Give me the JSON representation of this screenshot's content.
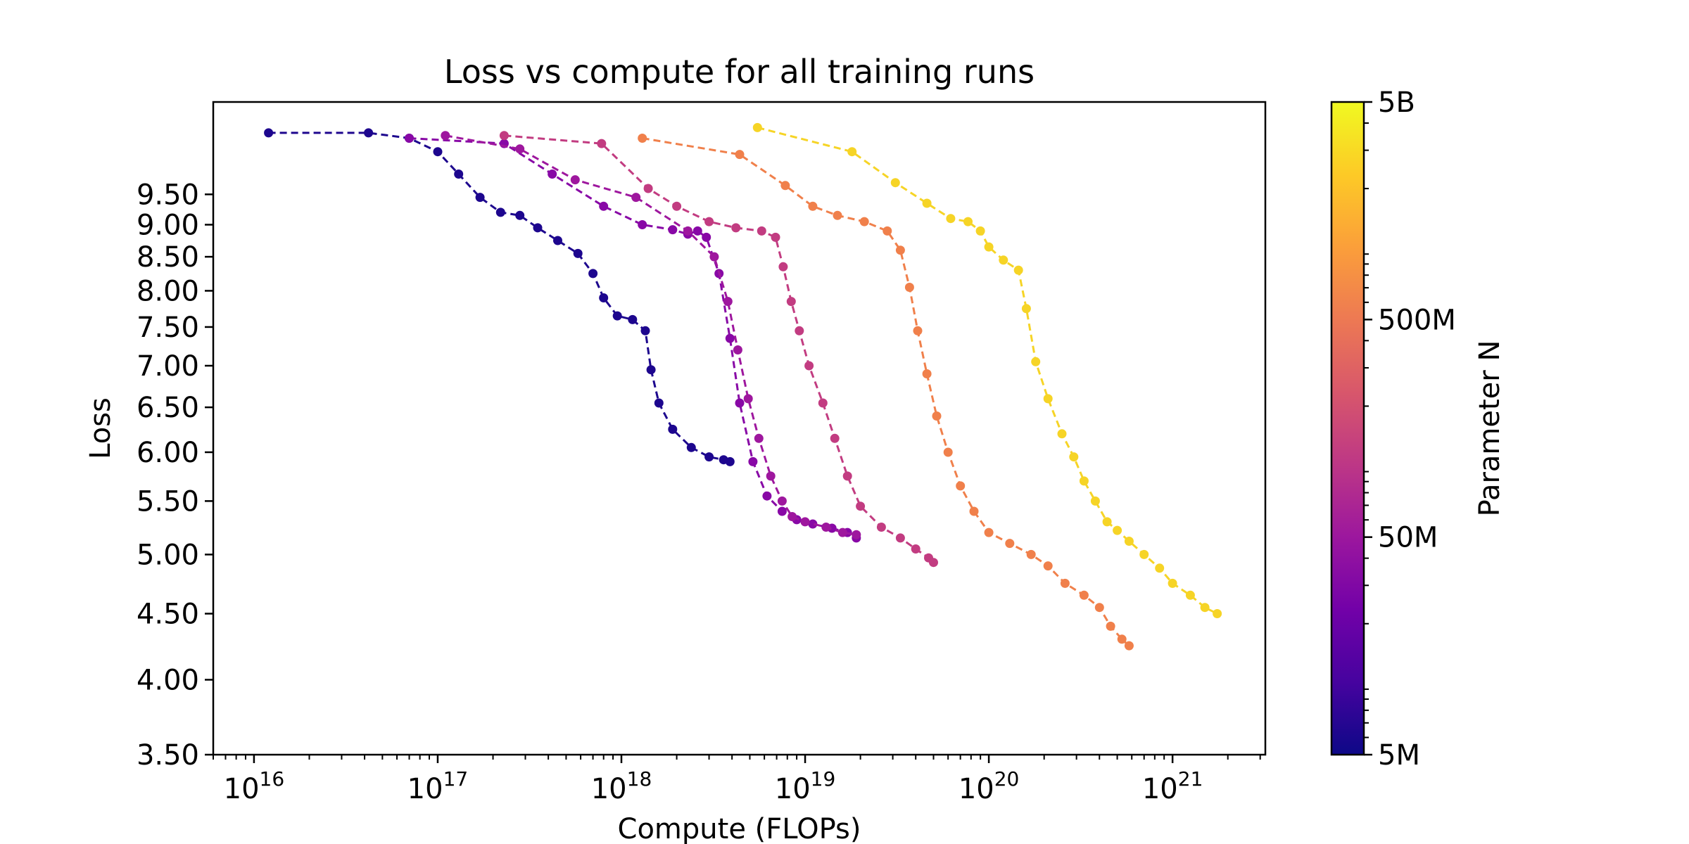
{
  "chart_data": {
    "type": "line",
    "title": "Loss vs compute for all training runs",
    "xlabel": "Compute (FLOPs)",
    "ylabel": "Loss",
    "xscale": "log",
    "yscale": "log",
    "xlim": [
      6000000000000000.0,
      3.2e+21
    ],
    "ylim": [
      3.5,
      11.2
    ],
    "grid": false,
    "line_style": "dashed",
    "marker": "circle",
    "x_ticks": [
      {
        "value": 1e+16,
        "base": "10",
        "exp": "16"
      },
      {
        "value": 1e+17,
        "base": "10",
        "exp": "17"
      },
      {
        "value": 1e+18,
        "base": "10",
        "exp": "18"
      },
      {
        "value": 1e+19,
        "base": "10",
        "exp": "19"
      },
      {
        "value": 1e+20,
        "base": "10",
        "exp": "20"
      },
      {
        "value": 1e+21,
        "base": "10",
        "exp": "21"
      }
    ],
    "y_ticks": [
      "3.50",
      "4.00",
      "4.50",
      "5.00",
      "5.50",
      "6.00",
      "6.50",
      "7.00",
      "7.50",
      "8.00",
      "8.50",
      "9.00",
      "9.50"
    ],
    "colorbar": {
      "label": "Parameter N",
      "scale": "log",
      "colormap": "plasma",
      "range": [
        5000000.0,
        5000000000.0
      ],
      "ticks": [
        {
          "value": 5000000.0,
          "label": "5M"
        },
        {
          "value": 50000000.0,
          "label": "50M"
        },
        {
          "value": 500000000.0,
          "label": "500M"
        },
        {
          "value": 5000000000.0,
          "label": "5B"
        }
      ],
      "colors": [
        "#0d0887",
        "#46039f",
        "#7201a8",
        "#9c179e",
        "#bd3786",
        "#d8576b",
        "#ed7953",
        "#fb9f3a",
        "#fdca26",
        "#f0f921"
      ]
    },
    "series": [
      {
        "color": "#1d068e",
        "x": [
          1.2e+16,
          4.2e+16,
          7e+16,
          1e+17,
          1.3e+17,
          1.7e+17,
          2.2e+17,
          2.8e+17,
          3.5e+17,
          4.5e+17,
          5.8e+17,
          7e+17,
          8e+17,
          9.5e+17,
          1.15e+18,
          1.35e+18,
          1.45e+18,
          1.6e+18,
          1.9e+18,
          2.4e+18,
          3e+18,
          3.6e+18,
          3.9e+18
        ],
        "y": [
          10.6,
          10.6,
          10.5,
          10.25,
          9.85,
          9.45,
          9.2,
          9.15,
          8.95,
          8.75,
          8.55,
          8.25,
          7.9,
          7.65,
          7.6,
          7.45,
          6.95,
          6.55,
          6.25,
          6.05,
          5.95,
          5.92,
          5.9
        ]
      },
      {
        "color": "#8808a6",
        "x": [
          7e+16,
          2.3e+17,
          4.2e+17,
          8e+17,
          1.3e+18,
          1.9e+18,
          2.3e+18,
          2.6e+18,
          2.9e+18,
          3.4e+18,
          3.9e+18,
          4.4e+18,
          5.2e+18,
          6.2e+18,
          7.5e+18,
          9e+18,
          1.1e+19,
          1.4e+19,
          1.7e+19,
          1.9e+19
        ],
        "y": [
          10.5,
          10.4,
          9.85,
          9.3,
          9.0,
          8.92,
          8.85,
          8.9,
          8.8,
          8.25,
          7.35,
          6.55,
          5.9,
          5.55,
          5.4,
          5.32,
          5.28,
          5.24,
          5.2,
          5.15
        ]
      },
      {
        "color": "#9e179e",
        "x": [
          1.1e+17,
          2.8e+17,
          5.6e+17,
          1.2e+18,
          2.3e+18,
          3.2e+18,
          3.8e+18,
          4.3e+18,
          4.9e+18,
          5.6e+18,
          6.5e+18,
          7.5e+18,
          8.5e+18,
          1e+19,
          1.3e+19,
          1.6e+19,
          1.9e+19
        ],
        "y": [
          10.55,
          10.3,
          9.75,
          9.45,
          8.9,
          8.5,
          7.85,
          7.2,
          6.6,
          6.15,
          5.75,
          5.5,
          5.35,
          5.3,
          5.25,
          5.2,
          5.18
        ]
      },
      {
        "color": "#c23c81",
        "x": [
          2.3e+17,
          7.8e+17,
          1.4e+18,
          2e+18,
          3e+18,
          4.2e+18,
          5.8e+18,
          6.9e+18,
          7.6e+18,
          8.4e+18,
          9.3e+18,
          1.05e+19,
          1.25e+19,
          1.45e+19,
          1.7e+19,
          2e+19,
          2.6e+19,
          3.3e+19,
          4e+19,
          4.7e+19,
          5e+19
        ],
        "y": [
          10.55,
          10.4,
          9.6,
          9.3,
          9.05,
          8.95,
          8.9,
          8.8,
          8.35,
          7.85,
          7.45,
          7.0,
          6.55,
          6.15,
          5.75,
          5.45,
          5.25,
          5.15,
          5.05,
          4.97,
          4.93
        ]
      },
      {
        "color": "#f0804b",
        "x": [
          1.3e+18,
          4.4e+18,
          7.8e+18,
          1.1e+19,
          1.5e+19,
          2.1e+19,
          2.8e+19,
          3.3e+19,
          3.7e+19,
          4.1e+19,
          4.6e+19,
          5.2e+19,
          6e+19,
          7e+19,
          8.3e+19,
          1e+20,
          1.3e+20,
          1.7e+20,
          2.1e+20,
          2.6e+20,
          3.3e+20,
          4e+20,
          4.6e+20,
          5.3e+20,
          5.8e+20
        ],
        "y": [
          10.5,
          10.2,
          9.65,
          9.3,
          9.15,
          9.05,
          8.9,
          8.6,
          8.05,
          7.45,
          6.9,
          6.4,
          6.0,
          5.65,
          5.4,
          5.2,
          5.1,
          5.0,
          4.9,
          4.75,
          4.65,
          4.55,
          4.4,
          4.3,
          4.25
        ]
      },
      {
        "color": "#f6d426",
        "x": [
          5.5e+18,
          1.8e+19,
          3.1e+19,
          4.6e+19,
          6.2e+19,
          7.7e+19,
          9e+19,
          1e+20,
          1.2e+20,
          1.45e+20,
          1.6e+20,
          1.8e+20,
          2.1e+20,
          2.5e+20,
          2.9e+20,
          3.3e+20,
          3.8e+20,
          4.4e+20,
          5e+20,
          5.8e+20,
          7e+20,
          8.5e+20,
          1e+21,
          1.25e+21,
          1.5e+21,
          1.75e+21
        ],
        "y": [
          10.7,
          10.25,
          9.7,
          9.35,
          9.1,
          9.05,
          8.9,
          8.65,
          8.45,
          8.3,
          7.75,
          7.05,
          6.6,
          6.2,
          5.95,
          5.7,
          5.5,
          5.3,
          5.22,
          5.12,
          5.0,
          4.88,
          4.75,
          4.65,
          4.55,
          4.5
        ]
      }
    ]
  }
}
